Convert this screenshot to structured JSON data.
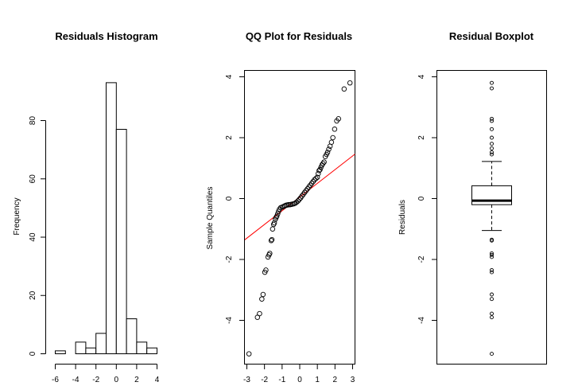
{
  "chart_data": [
    {
      "type": "histogram",
      "title": "Residuals Histogram",
      "xlabel": "",
      "ylabel": "Frequency",
      "xlim": [
        -6,
        4
      ],
      "ylim": [
        0,
        95
      ],
      "xticks": [
        -6,
        -4,
        -2,
        0,
        2,
        4
      ],
      "yticks": [
        0,
        20,
        40,
        60,
        80
      ],
      "bins": [
        {
          "x0": -6,
          "x1": -5,
          "count": 1
        },
        {
          "x0": -5,
          "x1": -4,
          "count": 0
        },
        {
          "x0": -4,
          "x1": -3,
          "count": 4
        },
        {
          "x0": -3,
          "x1": -2,
          "count": 2
        },
        {
          "x0": -2,
          "x1": -1,
          "count": 7
        },
        {
          "x0": -1,
          "x1": 0,
          "count": 93
        },
        {
          "x0": 0,
          "x1": 1,
          "count": 77
        },
        {
          "x0": 1,
          "x1": 2,
          "count": 12
        },
        {
          "x0": 2,
          "x1": 3,
          "count": 4
        },
        {
          "x0": 3,
          "x1": 4,
          "count": 2
        }
      ]
    },
    {
      "type": "scatter",
      "title": "QQ Plot for Residuals",
      "xlabel": "",
      "ylabel": "Sample Quantiles",
      "xlim": [
        -3,
        3
      ],
      "ylim": [
        -5.2,
        4.1
      ],
      "xticks": [
        -3,
        -2,
        -1,
        0,
        1,
        2,
        3
      ],
      "yticks": [
        -4,
        -2,
        0,
        2,
        4
      ],
      "reference_line": {
        "intercept": 0.05,
        "slope": 0.45,
        "color": "#ff0000"
      },
      "points": [
        [
          -2.88,
          -5.1
        ],
        [
          -2.4,
          -3.9
        ],
        [
          -2.28,
          -3.78
        ],
        [
          -2.15,
          -3.3
        ],
        [
          -2.08,
          -3.15
        ],
        [
          -1.98,
          -2.42
        ],
        [
          -1.92,
          -2.35
        ],
        [
          -1.8,
          -1.92
        ],
        [
          -1.74,
          -1.85
        ],
        [
          -1.7,
          -1.8
        ],
        [
          -1.62,
          -1.38
        ],
        [
          -1.58,
          -1.35
        ],
        [
          -1.54,
          -1.0
        ],
        [
          -1.48,
          -0.85
        ],
        [
          -1.44,
          -0.8
        ],
        [
          -1.38,
          -0.68
        ],
        [
          -1.34,
          -0.62
        ],
        [
          -1.3,
          -0.58
        ],
        [
          -1.25,
          -0.5
        ],
        [
          -1.2,
          -0.42
        ],
        [
          -1.15,
          -0.35
        ],
        [
          -1.08,
          -0.3
        ],
        [
          -1.0,
          -0.28
        ],
        [
          -0.92,
          -0.26
        ],
        [
          -0.85,
          -0.24
        ],
        [
          -0.78,
          -0.22
        ],
        [
          -0.7,
          -0.21
        ],
        [
          -0.62,
          -0.2
        ],
        [
          -0.55,
          -0.2
        ],
        [
          -0.48,
          -0.19
        ],
        [
          -0.4,
          -0.18
        ],
        [
          -0.32,
          -0.17
        ],
        [
          -0.25,
          -0.15
        ],
        [
          -0.18,
          -0.12
        ],
        [
          -0.1,
          -0.08
        ],
        [
          -0.03,
          -0.03
        ],
        [
          0.05,
          0.02
        ],
        [
          0.12,
          0.08
        ],
        [
          0.2,
          0.14
        ],
        [
          0.28,
          0.2
        ],
        [
          0.36,
          0.26
        ],
        [
          0.44,
          0.32
        ],
        [
          0.52,
          0.38
        ],
        [
          0.6,
          0.44
        ],
        [
          0.68,
          0.5
        ],
        [
          0.76,
          0.56
        ],
        [
          0.84,
          0.62
        ],
        [
          0.92,
          0.66
        ],
        [
          1.0,
          0.7
        ],
        [
          1.05,
          0.82
        ],
        [
          1.1,
          0.92
        ],
        [
          1.15,
          0.95
        ],
        [
          1.2,
          1.02
        ],
        [
          1.26,
          1.1
        ],
        [
          1.32,
          1.15
        ],
        [
          1.38,
          1.2
        ],
        [
          1.45,
          1.38
        ],
        [
          1.52,
          1.45
        ],
        [
          1.58,
          1.52
        ],
        [
          1.65,
          1.62
        ],
        [
          1.72,
          1.72
        ],
        [
          1.8,
          1.85
        ],
        [
          1.88,
          2.0
        ],
        [
          1.98,
          2.28
        ],
        [
          2.1,
          2.55
        ],
        [
          2.2,
          2.62
        ],
        [
          2.52,
          3.6
        ],
        [
          2.85,
          3.8
        ]
      ]
    },
    {
      "type": "boxplot",
      "title": "Residual Boxplot",
      "xlabel": "",
      "ylabel": "Residuals",
      "ylim": [
        -5.4,
        4.2
      ],
      "yticks": [
        -4,
        -2,
        0,
        2,
        4
      ],
      "box": {
        "whisker_low": -1.05,
        "q1": -0.2,
        "median": -0.07,
        "q3": 0.42,
        "whisker_high": 1.22
      },
      "outliers": [
        3.8,
        3.62,
        2.62,
        2.55,
        2.28,
        2.0,
        1.8,
        1.65,
        1.52,
        1.45,
        -1.38,
        -1.35,
        -1.8,
        -1.85,
        -1.92,
        -2.35,
        -2.42,
        -3.15,
        -3.3,
        -3.78,
        -3.9,
        -5.1
      ]
    }
  ]
}
